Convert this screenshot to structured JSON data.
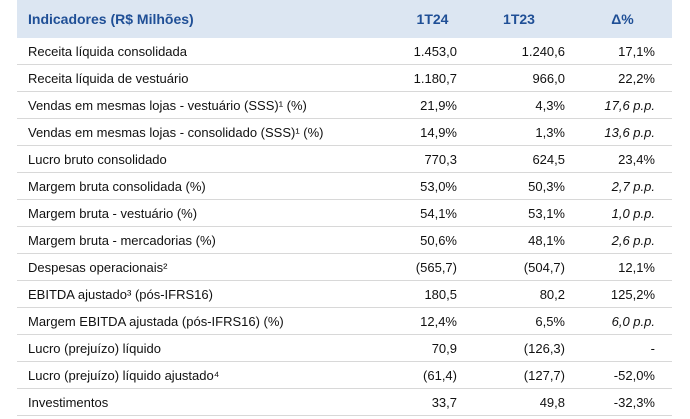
{
  "table": {
    "header": [
      "Indicadores (R$ Milhões)",
      "1T24",
      "1T23",
      "Δ%"
    ],
    "rows": [
      [
        "Receita líquida consolidada",
        "1.453,0",
        "1.240,6",
        "17,1%"
      ],
      [
        "Receita líquida de vestuário",
        "1.180,7",
        "966,0",
        "22,2%"
      ],
      [
        "Vendas em mesmas lojas - vestuário (SSS)¹ (%)",
        "21,9%",
        "4,3%",
        "17,6 p.p."
      ],
      [
        "Vendas em mesmas lojas - consolidado (SSS)¹ (%)",
        "14,9%",
        "1,3%",
        "13,6 p.p."
      ],
      [
        "Lucro bruto consolidado",
        "770,3",
        "624,5",
        "23,4%"
      ],
      [
        "Margem bruta consolidada (%)",
        "53,0%",
        "50,3%",
        "2,7 p.p."
      ],
      [
        "Margem bruta - vestuário (%)",
        "54,1%",
        "53,1%",
        "1,0 p.p."
      ],
      [
        "Margem bruta - mercadorias (%)",
        "50,6%",
        "48,1%",
        "2,6 p.p."
      ],
      [
        "Despesas operacionais²",
        "(565,7)",
        "(504,7)",
        "12,1%"
      ],
      [
        "EBITDA ajustado³ (pós-IFRS16)",
        "180,5",
        "80,2",
        "125,2%"
      ],
      [
        "Margem EBITDA ajustada (pós-IFRS16) (%)",
        "12,4%",
        "6,5%",
        "6,0 p.p."
      ],
      [
        "Lucro (prejuízo) líquido",
        "70,9",
        "(126,3)",
        "-"
      ],
      [
        "Lucro (prejuízo) líquido ajustado⁴",
        "(61,4)",
        "(127,7)",
        "-52,0%"
      ],
      [
        "Investimentos",
        "33,7",
        "49,8",
        "-32,3%"
      ]
    ]
  }
}
